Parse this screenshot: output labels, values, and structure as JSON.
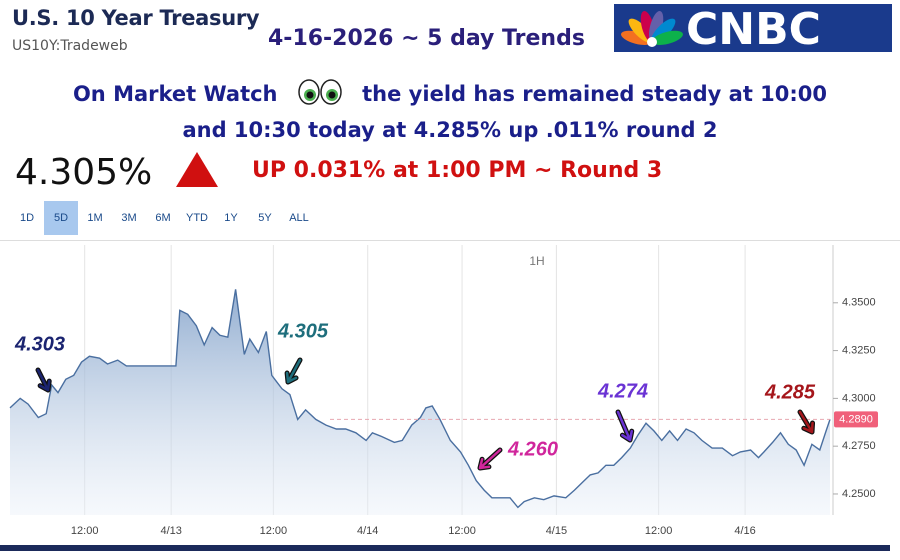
{
  "header": {
    "title": "U.S. 10 Year Treasury",
    "symbol": "US10Y:Tradeweb",
    "trend_title": "4-16-2026 ~ 5 day Trends",
    "logo": "CNBC"
  },
  "headline": {
    "part1": "On Market Watch",
    "part2": "the yield has remained steady at 10:00",
    "part3": "and 10:30 today at 4.285% up .011% round 2"
  },
  "quote": {
    "price": "4.305%",
    "note": "UP 0.031% at 1:00 PM ~ Round 3"
  },
  "range_buttons": [
    "1D",
    "5D",
    "1M",
    "3M",
    "6M",
    "YTD",
    "1Y",
    "5Y",
    "ALL"
  ],
  "chart_data": {
    "type": "area",
    "interval_label": "1H",
    "color": "#4a6fa0",
    "x": [
      2.5,
      3.8,
      4.8,
      6.1,
      7.1,
      7.8,
      8.6,
      9.6,
      10.6,
      11.6,
      12.6,
      13.9,
      14.9,
      16.2,
      17.3,
      19.0,
      21.6,
      23.6,
      24.1,
      25.1,
      26.2,
      27.2,
      28.2,
      29.2,
      30.2,
      31.2,
      32.3,
      33.0,
      34.1,
      35.1,
      35.8,
      37.1,
      38.1,
      39.1,
      40.1,
      41.4,
      42.7,
      44.0,
      45.2,
      46.5,
      47.8,
      48.6,
      49.8,
      51.4,
      52.4,
      53.6,
      54.7,
      55.4,
      56.2,
      57.2,
      58.5,
      59.8,
      60.8,
      61.8,
      62.8,
      63.8,
      64.8,
      66.1,
      67.1,
      67.9,
      69.2,
      70.4,
      71.7,
      73.2,
      74.3,
      75.3,
      76.3,
      77.3,
      78.3,
      79.3,
      80.3,
      81.4,
      82.4,
      83.4,
      84.4,
      85.4,
      86.4,
      87.4,
      88.5,
      89.5,
      90.5,
      91.8,
      93.1,
      94.4,
      95.4,
      96.7,
      97.7,
      98.4,
      99.5,
      100.5,
      101.5,
      102.5,
      103.5,
      104.5,
      105.5,
      106.3,
      106.8
    ],
    "values": [
      4.295,
      4.3,
      4.297,
      4.29,
      4.292,
      4.307,
      4.303,
      4.31,
      4.312,
      4.319,
      4.322,
      4.321,
      4.318,
      4.32,
      4.317,
      4.317,
      4.317,
      4.317,
      4.346,
      4.344,
      4.338,
      4.328,
      4.337,
      4.333,
      4.332,
      4.357,
      4.323,
      4.331,
      4.324,
      4.335,
      4.312,
      4.305,
      4.302,
      4.289,
      4.294,
      4.289,
      4.286,
      4.284,
      4.284,
      4.282,
      4.278,
      4.282,
      4.28,
      4.277,
      4.278,
      4.286,
      4.29,
      4.295,
      4.296,
      4.289,
      4.278,
      4.272,
      4.265,
      4.257,
      4.252,
      4.248,
      4.248,
      4.248,
      4.243,
      4.246,
      4.248,
      4.247,
      4.249,
      4.248,
      4.252,
      4.256,
      4.26,
      4.261,
      4.265,
      4.265,
      4.269,
      4.274,
      4.281,
      4.287,
      4.283,
      4.278,
      4.283,
      4.278,
      4.284,
      4.282,
      4.278,
      4.274,
      4.274,
      4.27,
      4.272,
      4.273,
      4.269,
      4.272,
      4.277,
      4.282,
      4.276,
      4.273,
      4.265,
      4.276,
      4.273,
      4.283,
      4.289
    ],
    "xlim": [
      2.5,
      106.8
    ],
    "xticks": [
      {
        "value": 12,
        "label": "12:00"
      },
      {
        "value": 23,
        "label": "4/13"
      },
      {
        "value": 36,
        "label": "12:00"
      },
      {
        "value": 48,
        "label": "4/14"
      },
      {
        "value": 60,
        "label": "12:00"
      },
      {
        "value": 72,
        "label": "4/15"
      },
      {
        "value": 85,
        "label": "12:00"
      },
      {
        "value": 96,
        "label": "4/16"
      }
    ],
    "ylim": [
      4.239,
      4.375
    ],
    "yticks": [
      {
        "value": 4.25,
        "label": "4.2500"
      },
      {
        "value": 4.275,
        "label": "4.2750"
      },
      {
        "value": 4.3,
        "label": "4.3000"
      },
      {
        "value": 4.325,
        "label": "4.3250"
      },
      {
        "value": 4.35,
        "label": "4.3500"
      }
    ],
    "reference_line": {
      "value": 4.289,
      "label": "4.2890",
      "color": "#f0607a"
    },
    "annotations": [
      {
        "text": "4.303",
        "color": "#1b2470"
      },
      {
        "text": "4.305",
        "color": "#1e6e7c"
      },
      {
        "text": "4.260",
        "color": "#d0269c"
      },
      {
        "text": "4.274",
        "color": "#6a33d4"
      },
      {
        "text": "4.285",
        "color": "#a5161b"
      }
    ]
  }
}
